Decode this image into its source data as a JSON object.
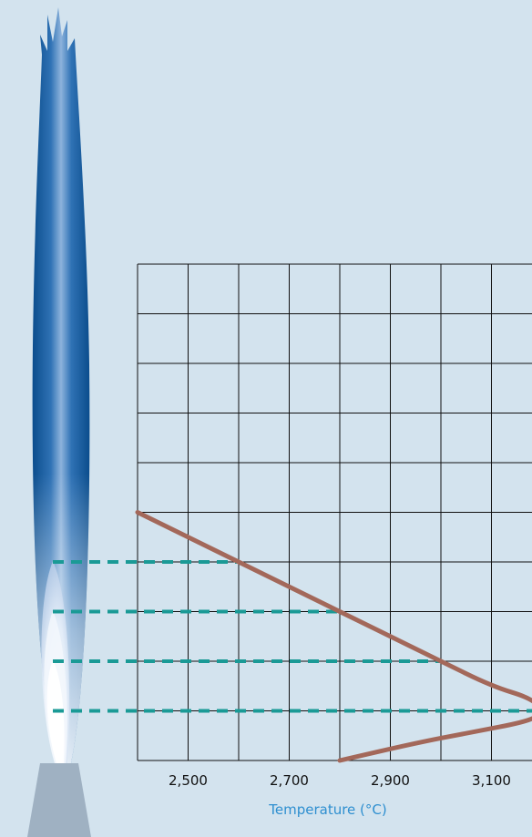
{
  "chart_data": {
    "type": "line",
    "xlabel": "Temperature (°C)",
    "ylabel": "",
    "title": "",
    "x_ticks": [
      "2,500",
      "2,700",
      "2,900",
      "3,100"
    ],
    "x_tick_values": [
      2500,
      2700,
      2900,
      3100
    ],
    "xlim": [
      2400,
      3200
    ],
    "ylim": [
      0,
      10
    ],
    "grid": true,
    "series": [
      {
        "points": [
          {
            "x": 2400,
            "y": 5.0
          },
          {
            "x": 2600,
            "y": 4.0
          },
          {
            "x": 2700,
            "y": 3.5
          },
          {
            "x": 2800,
            "y": 3.0
          },
          {
            "x": 2900,
            "y": 2.5
          },
          {
            "x": 3000,
            "y": 2.0
          },
          {
            "x": 3100,
            "y": 1.5
          },
          {
            "x": 3180,
            "y": 1.25
          },
          {
            "x": 3200,
            "y": 1.0
          },
          {
            "x": 3180,
            "y": 0.8
          },
          {
            "x": 3050,
            "y": 0.55
          },
          {
            "x": 2950,
            "y": 0.35
          },
          {
            "x": 2800,
            "y": 0.0
          }
        ]
      }
    ],
    "flame_zone_levels": [
      1.0,
      2.0,
      3.0,
      4.0
    ]
  },
  "colors": {
    "background": "#d3e3ee",
    "grid": "#111111",
    "curve": "#a3685a",
    "dashed_lines": "#1a9a96",
    "axis_title": "#2e8fd0",
    "burner": "#9fb1c2",
    "flame_outer": "#0b4d8c",
    "flame_inner": "#ffffff"
  }
}
